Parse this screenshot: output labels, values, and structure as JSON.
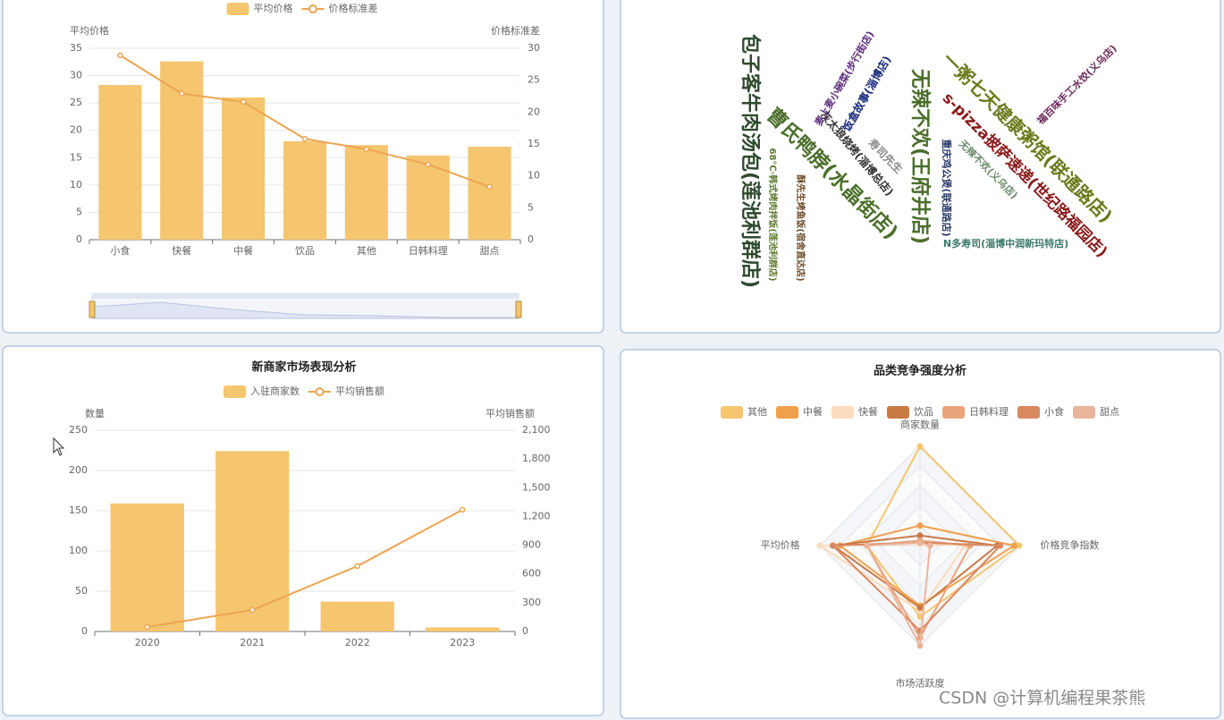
{
  "chart_data": [
    {
      "type": "bar-line",
      "categories": [
        "小食",
        "快餐",
        "中餐",
        "饮品",
        "其他",
        "日韩料理",
        "甜点"
      ],
      "series": [
        {
          "name": "平均价格",
          "kind": "bar",
          "color": "#f5c66f",
          "values": [
            28.3,
            32.6,
            26.0,
            18.0,
            17.3,
            15.4,
            17.0
          ]
        },
        {
          "name": "价格标准差",
          "kind": "line",
          "axis": "y2",
          "color": "#eea451",
          "values": [
            28.9,
            22.9,
            21.6,
            15.8,
            14.2,
            11.8,
            8.3
          ]
        }
      ],
      "y_label": "平均价格",
      "y2_label": "价格标准差",
      "ylim": [
        0,
        35
      ],
      "yticks": [
        0,
        5,
        10,
        15,
        20,
        25,
        30,
        35
      ],
      "y2lim": [
        0,
        30
      ],
      "y2ticks": [
        0,
        5,
        10,
        15,
        20,
        25,
        30
      ],
      "grid": true
    },
    {
      "type": "wordcloud",
      "words": [
        {
          "text": "包子客牛肉汤包(莲池利群店)",
          "value": 22,
          "color": "#2e4a2e"
        },
        {
          "text": "68℃·韩式烤肉拌饭(莲池利群店)",
          "value": 10,
          "color": "#5a7a2a"
        },
        {
          "text": "曹氏鸭脖(水晶街店)",
          "value": 22,
          "color": "#4a6e2a"
        },
        {
          "text": "酥先生烤鱼饭(宿舍直达店)",
          "value": 10,
          "color": "#6b4a2a"
        },
        {
          "text": "灰太狼烧烤(淄博总店)",
          "value": 12,
          "color": "#333333"
        },
        {
          "text": "麦上麦小碗菜(步行街店)",
          "value": 11,
          "color": "#5a2a7a"
        },
        {
          "text": "饭盒故事(淄博店)",
          "value": 12,
          "color": "#1a2a7a"
        },
        {
          "text": "寿司先生",
          "value": 12,
          "color": "#888888"
        },
        {
          "text": "无辣不欢(王府井店)",
          "value": 22,
          "color": "#4a6e2a"
        },
        {
          "text": "重庆鸡公煲(联通路店)",
          "value": 11,
          "color": "#2a3a6a"
        },
        {
          "text": "无辣不欢(义乌店)",
          "value": 11,
          "color": "#6a8a6a"
        },
        {
          "text": "N多寿司(淄博中润新玛特店)",
          "value": 11,
          "color": "#3a7a6a"
        },
        {
          "text": "一粥七天健康粥馆(联通路店)",
          "value": 20,
          "color": "#6a7a1a"
        },
        {
          "text": "s-pizza披萨速递(世纪路福园店)",
          "value": 17,
          "color": "#8a1a1a"
        },
        {
          "text": "福百味手工水饺(义乌店)",
          "value": 11,
          "color": "#6a2a5a"
        }
      ]
    },
    {
      "type": "bar-line",
      "title": "新商家市场表现分析",
      "categories": [
        "2020",
        "2021",
        "2022",
        "2023"
      ],
      "series": [
        {
          "name": "入驻商家数",
          "kind": "bar",
          "color": "#f5c66f",
          "values": [
            159,
            224,
            37,
            5
          ]
        },
        {
          "name": "平均销售额",
          "kind": "line",
          "axis": "y2",
          "color": "#eea451",
          "values": [
            47,
            224,
            682,
            1270
          ]
        }
      ],
      "y_label": "数量",
      "y2_label": "平均销售额",
      "ylim": [
        0,
        250
      ],
      "yticks": [
        0,
        50,
        100,
        150,
        200,
        250
      ],
      "y2lim": [
        0,
        2100
      ],
      "y2ticks": [
        0,
        300,
        600,
        900,
        {
          "value": 1200,
          "label": "1,200"
        },
        {
          "value": 1500,
          "label": "1,500"
        },
        {
          "value": 1800,
          "label": "1,800"
        },
        {
          "value": 2100,
          "label": "2,100"
        }
      ],
      "grid": true
    },
    {
      "type": "radar",
      "title": "品类竞争强度分析",
      "indicators": [
        "商家数量",
        "价格竞争指数",
        "市场活跃度",
        "平均价格"
      ],
      "rlim": [
        0,
        1
      ],
      "series": [
        {
          "name": "其他",
          "color": "#f5c66f",
          "values": [
            0.99,
            0.99,
            0.71,
            0.53
          ]
        },
        {
          "name": "中餐",
          "color": "#f0a04b",
          "values": [
            0.2,
            0.94,
            0.6,
            0.8
          ]
        },
        {
          "name": "快餐",
          "color": "#fbdcbc",
          "values": [
            0.02,
            0.45,
            0.65,
            1.0
          ]
        },
        {
          "name": "饮品",
          "color": "#c87a45",
          "values": [
            0.1,
            0.77,
            0.62,
            0.87
          ]
        },
        {
          "name": "日韩料理",
          "color": "#e9a47c",
          "values": [
            0.05,
            0.5,
            0.92,
            0.53
          ]
        },
        {
          "name": "小食",
          "color": "#d98860",
          "values": [
            0.03,
            0.8,
            0.85,
            0.87
          ]
        },
        {
          "name": "甜点",
          "color": "#ebb49a",
          "values": [
            0.03,
            0.1,
            1.0,
            0.53
          ]
        }
      ]
    }
  ],
  "watermark": "CSDN @计算机编程果茶熊"
}
